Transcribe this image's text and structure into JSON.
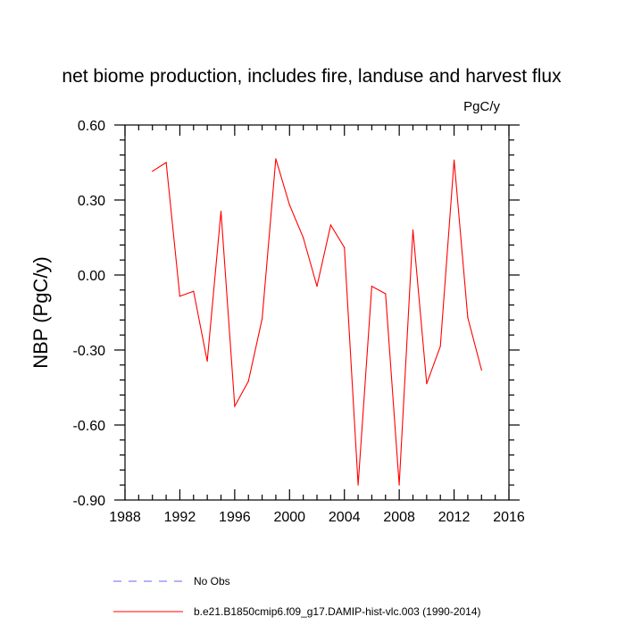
{
  "chart_data": {
    "type": "line",
    "title": "net biome production, includes fire, landuse and harvest flux",
    "units": "PgC/y",
    "ylabel": "NBP  (PgC/y)",
    "xlabel": "",
    "xlim": [
      1988,
      2016
    ],
    "ylim": [
      -0.9,
      0.6
    ],
    "x_ticks": [
      1988,
      1992,
      1996,
      2000,
      2004,
      2008,
      2012,
      2016
    ],
    "x_tick_labels": [
      "1988",
      "1992",
      "1996",
      "2000",
      "2004",
      "2008",
      "2012",
      "2016"
    ],
    "x_minor_step": 1,
    "y_ticks": [
      0.6,
      0.3,
      0.0,
      -0.3,
      -0.6,
      -0.9
    ],
    "y_tick_labels": [
      "0.60",
      "0.30",
      "0.00",
      "-0.30",
      "-0.60",
      "-0.90"
    ],
    "y_minor_step": 0.06,
    "grid": false,
    "series": [
      {
        "name": "b.e21.B1850cmip6.f09_g17.DAMIP-hist-vlc.003 (1990-2014)",
        "color": "#ff0000",
        "style": "solid",
        "x": [
          1990,
          1991,
          1992,
          1993,
          1994,
          1995,
          1996,
          1997,
          1998,
          1999,
          2000,
          2001,
          2002,
          2003,
          2004,
          2005,
          2006,
          2007,
          2008,
          2009,
          2010,
          2011,
          2012,
          2013,
          2014
        ],
        "values": [
          0.415,
          0.45,
          -0.085,
          -0.065,
          -0.345,
          0.255,
          -0.525,
          -0.425,
          -0.175,
          0.465,
          0.28,
          0.15,
          -0.045,
          0.2,
          0.11,
          -0.84,
          -0.045,
          -0.075,
          -0.84,
          0.18,
          -0.435,
          -0.285,
          0.46,
          -0.17,
          -0.38
        ]
      }
    ],
    "legend": [
      {
        "label": "No Obs",
        "color": "#6666ff",
        "style": "dashed"
      },
      {
        "label": "b.e21.B1850cmip6.f09_g17.DAMIP-hist-vlc.003 (1990-2014)",
        "color": "#ff0000",
        "style": "solid"
      }
    ],
    "legend_placement": "bottom"
  }
}
